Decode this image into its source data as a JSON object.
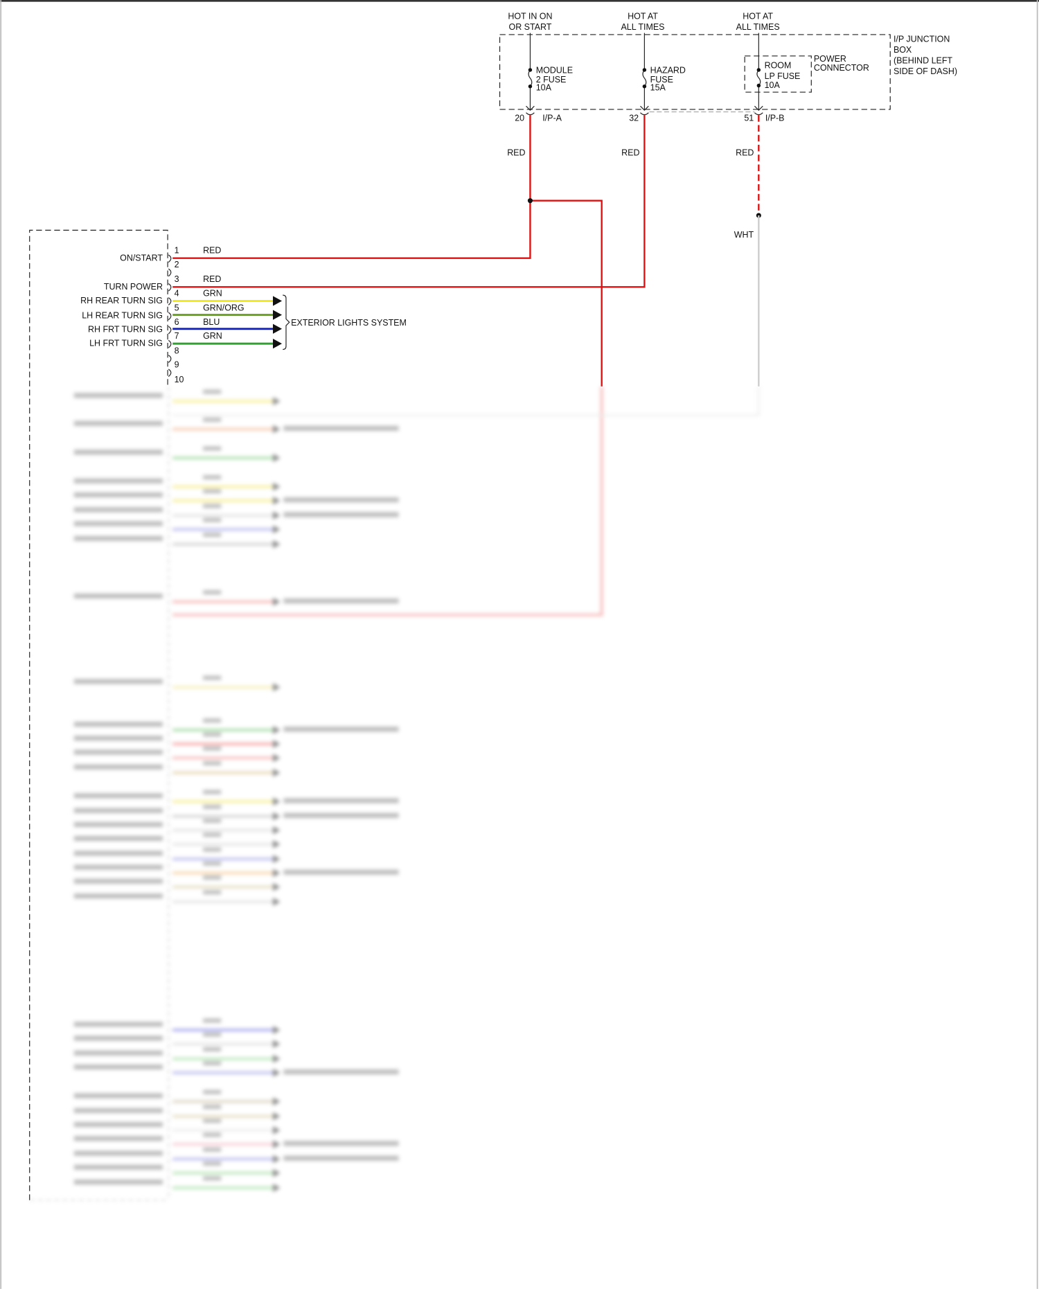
{
  "sources": [
    {
      "line1": "HOT IN ON",
      "line2": "OR START"
    },
    {
      "line1": "HOT AT",
      "line2": "ALL TIMES"
    },
    {
      "line1": "HOT AT",
      "line2": "ALL TIMES"
    }
  ],
  "junction_box": {
    "lines": [
      "I/P JUNCTION",
      "BOX",
      "(BEHIND LEFT",
      "SIDE OF DASH)"
    ]
  },
  "power_connector": {
    "lines": [
      "POWER",
      "CONNECTOR"
    ]
  },
  "fuses": [
    {
      "lines": [
        "MODULE",
        "2 FUSE",
        "10A"
      ]
    },
    {
      "lines": [
        "HAZARD",
        "FUSE",
        "15A"
      ]
    },
    {
      "lines": [
        "ROOM",
        "LP FUSE",
        "10A"
      ]
    }
  ],
  "connectors": [
    {
      "pin": "20",
      "name": "I/P-A",
      "wire": "RED"
    },
    {
      "pin": "32",
      "name": "",
      "wire": "RED"
    },
    {
      "pin": "51",
      "name": "I/P-B",
      "wire": "RED"
    }
  ],
  "splice_wire": "WHT",
  "module_pins": [
    "1",
    "2",
    "3",
    "4",
    "5",
    "6",
    "7",
    "8",
    "9",
    "10"
  ],
  "circuits": [
    {
      "label": "ON/START",
      "wire": "RED",
      "color": "#e01010"
    },
    {
      "label": "TURN POWER",
      "wire": "RED",
      "color": "#e01010"
    },
    {
      "label": "RH REAR TURN SIG",
      "wire": "GRN",
      "color": "#f2ea1a"
    },
    {
      "label": "LH REAR TURN SIG",
      "wire": "GRN/ORG",
      "color": "#6aa020"
    },
    {
      "label": "RH FRT TURN SIG",
      "wire": "BLU",
      "color": "#1020c0"
    },
    {
      "label": "LH FRT TURN SIG",
      "wire": "GRN",
      "color": "#30a030"
    }
  ],
  "destination": "EXTERIOR LIGHTS SYSTEM",
  "colors": {
    "red": "#e01010",
    "wht": "#cccccc"
  }
}
